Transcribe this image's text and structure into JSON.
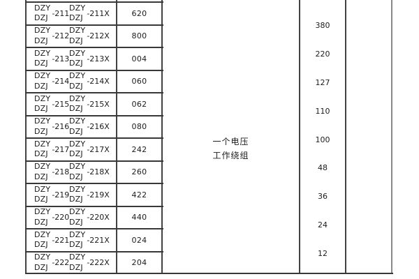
{
  "table": {
    "model_rows": [
      {
        "left_top": "DZY",
        "left_bottom": "DZJ",
        "left_suffix": "-211",
        "right_top": "DZY",
        "right_bottom": "DZJ",
        "right_suffix": "-211X",
        "code": "620"
      },
      {
        "left_top": "DZY",
        "left_bottom": "DZJ",
        "left_suffix": "-212",
        "right_top": "DZY",
        "right_bottom": "DZJ",
        "right_suffix": "-212X",
        "code": "800"
      },
      {
        "left_top": "DZY",
        "left_bottom": "DZJ",
        "left_suffix": "-213",
        "right_top": "DZY",
        "right_bottom": "DZJ",
        "right_suffix": "-213X",
        "code": "004"
      },
      {
        "left_top": "DZY",
        "left_bottom": "DZJ",
        "left_suffix": "-214",
        "right_top": "DZY",
        "right_bottom": "DZJ",
        "right_suffix": "-214X",
        "code": "060"
      },
      {
        "left_top": "DZY",
        "left_bottom": "DZJ",
        "left_suffix": "-215",
        "right_top": "DZY",
        "right_bottom": "DZJ",
        "right_suffix": "-215X",
        "code": "062"
      },
      {
        "left_top": "DZY",
        "left_bottom": "DZJ",
        "left_suffix": "-216",
        "right_top": "DZY",
        "right_bottom": "DZJ",
        "right_suffix": "-216X",
        "code": "080"
      },
      {
        "left_top": "DZY",
        "left_bottom": "DZJ",
        "left_suffix": "-217",
        "right_top": "DZY",
        "right_bottom": "DZJ",
        "right_suffix": "-217X",
        "code": "242"
      },
      {
        "left_top": "DZY",
        "left_bottom": "DZJ",
        "left_suffix": "-218",
        "right_top": "DZY",
        "right_bottom": "DZJ",
        "right_suffix": "-218X",
        "code": "260"
      },
      {
        "left_top": "DZY",
        "left_bottom": "DZJ",
        "left_suffix": "-219",
        "right_top": "DZY",
        "right_bottom": "DZJ",
        "right_suffix": "-219X",
        "code": "422"
      },
      {
        "left_top": "DZY",
        "left_bottom": "DZJ",
        "left_suffix": "-220",
        "right_top": "DZY",
        "right_bottom": "DZJ",
        "right_suffix": "-220X",
        "code": "440"
      },
      {
        "left_top": "DZY",
        "left_bottom": "DZJ",
        "left_suffix": "-221",
        "right_top": "DZY",
        "right_bottom": "DZJ",
        "right_suffix": "-221X",
        "code": "024"
      },
      {
        "left_top": "DZY",
        "left_bottom": "DZJ",
        "left_suffix": "-222",
        "right_top": "DZY",
        "right_bottom": "DZJ",
        "right_suffix": "-222X",
        "code": "204"
      }
    ],
    "winding_label": {
      "line1": "一个电压",
      "line2": "工作绕组"
    },
    "voltage_values": [
      "380",
      "220",
      "127",
      "110",
      "100",
      "48",
      "36",
      "24",
      "12"
    ]
  },
  "colors": {
    "border": "#424242",
    "border_light": "#8a8a8a",
    "text": "#1b1b1b",
    "background": "#ffffff"
  }
}
